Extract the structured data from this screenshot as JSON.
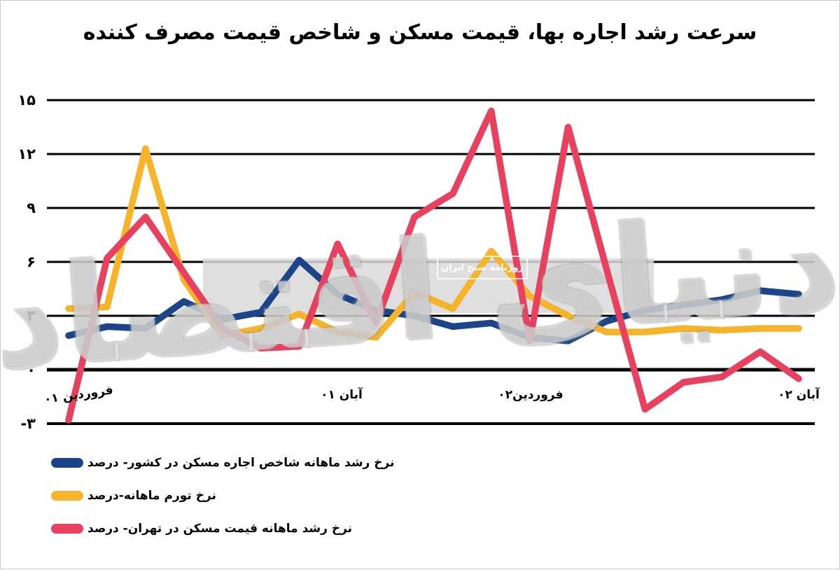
{
  "chart_data": {
    "type": "line",
    "title": "سرعت رشد اجاره بها، قیمت مسکن و شاخص قیمت مصرف کننده",
    "ylabel": "",
    "xlabel": "",
    "ylim": [
      -3,
      15
    ],
    "yticks": [
      15,
      12,
      9,
      6,
      3,
      0,
      -3
    ],
    "ytick_labels": [
      "۱۵",
      "۱۲",
      "۹",
      "۶",
      "۳",
      "۰",
      "-۳"
    ],
    "grid": true,
    "x_count": 20,
    "x_ticks": [
      {
        "index": 0,
        "label": "فروردین ۰۱"
      },
      {
        "index": 7,
        "label": "آبان ۰۱"
      },
      {
        "index": 12,
        "label": "فروردین۰۲"
      },
      {
        "index": 19,
        "label": "آبان ۰۲"
      }
    ],
    "series": [
      {
        "id": "country-rent-index",
        "name": "نرخ رشد ماهانه شاخص اجاره مسکن در کشور- درصد",
        "color": "#1b4489",
        "values": [
          1.9,
          2.4,
          2.3,
          3.8,
          2.8,
          3.2,
          6.1,
          4.2,
          3.3,
          3.0,
          2.4,
          2.6,
          1.8,
          1.6,
          2.7,
          3.3,
          3.6,
          3.9,
          4.4,
          4.2
        ]
      },
      {
        "id": "monthly-inflation",
        "name": "نرخ تورم ماهانه-درصد",
        "color": "#f6b42b",
        "values": [
          3.4,
          3.5,
          12.3,
          5.0,
          1.9,
          2.3,
          3.1,
          2.1,
          1.8,
          4.3,
          3.4,
          6.6,
          4.1,
          3.0,
          2.1,
          2.1,
          2.3,
          2.2,
          2.3,
          2.3
        ]
      },
      {
        "id": "tehran-house-price",
        "name": "نرخ رشد ماهانه قیمت مسکن در تهران- درصد",
        "color": "#e8405f",
        "values": [
          -2.8,
          6.2,
          8.5,
          5.4,
          2.3,
          1.2,
          1.3,
          7.0,
          2.6,
          8.5,
          9.8,
          14.4,
          1.6,
          13.5,
          5.6,
          -2.2,
          -0.7,
          -0.4,
          1.0,
          -0.5
        ]
      }
    ],
    "legend_position": "bottom-left",
    "watermark": {
      "band": true,
      "logo_text": "دنیای اقتصاد",
      "box_text": "روزنامه صبح ایران"
    }
  }
}
